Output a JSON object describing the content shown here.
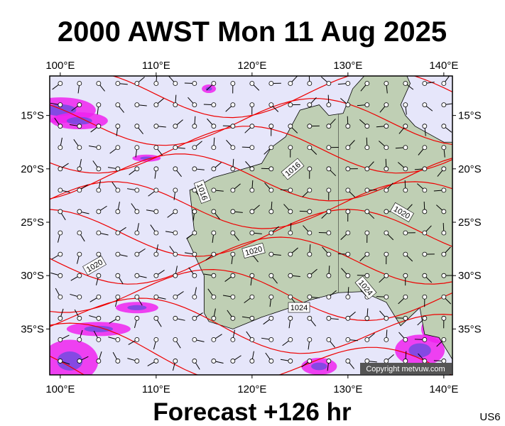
{
  "header": {
    "title": "2000 AWST Mon 11 Aug 2025"
  },
  "map": {
    "lon_ticks": [
      {
        "value": 100,
        "label": "100°E"
      },
      {
        "value": 110,
        "label": "110°E"
      },
      {
        "value": 120,
        "label": "120°E"
      },
      {
        "value": 130,
        "label": "130°E"
      },
      {
        "value": 140,
        "label": "140°E"
      }
    ],
    "lat_ticks": [
      {
        "value": -15,
        "label": "15°S"
      },
      {
        "value": -20,
        "label": "20°S"
      },
      {
        "value": -25,
        "label": "25°S"
      },
      {
        "value": -30,
        "label": "30°S"
      },
      {
        "value": -35,
        "label": "35°S"
      }
    ],
    "isobar_labels": [
      "1016",
      "1016",
      "1020",
      "1020",
      "1020",
      "1024",
      "1024"
    ],
    "copyright": "Copyright metvuw.com"
  },
  "footer": {
    "forecast": "Forecast +126 hr",
    "code": "US6"
  }
}
